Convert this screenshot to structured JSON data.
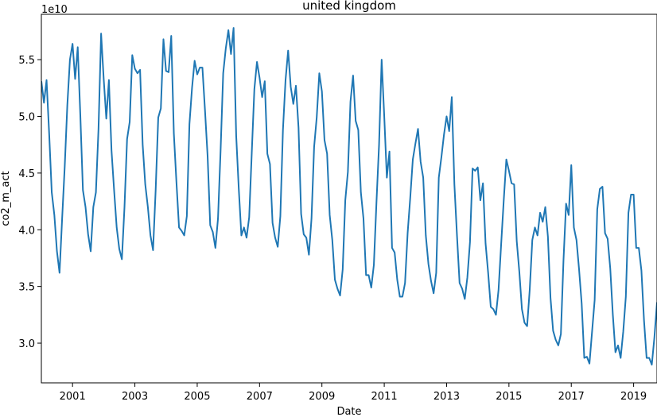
{
  "chart_data": {
    "type": "line",
    "title": "united kingdom",
    "xlabel": "Date",
    "ylabel": "co2_m_act",
    "y_offset_label": "1e10",
    "color": "#1f77b4",
    "grid": false,
    "xlim": [
      2000.0,
      2019.75
    ],
    "ylim": [
      2.65,
      5.9
    ],
    "x_ticks": [
      2001,
      2003,
      2005,
      2007,
      2009,
      2011,
      2013,
      2015,
      2017,
      2019
    ],
    "y_ticks": [
      3.0,
      3.5,
      4.0,
      4.5,
      5.0,
      5.5
    ],
    "y_tick_labels": [
      "3.0",
      "3.5",
      "4.0",
      "4.5",
      "5.0",
      "5.5"
    ],
    "series": [
      {
        "values": [
          5.31,
          5.12,
          5.32,
          4.85,
          4.33,
          4.13,
          3.81,
          3.62,
          4.1,
          4.56,
          5.1,
          5.5,
          5.64,
          5.33,
          5.61,
          5.01,
          4.35,
          4.2,
          3.96,
          3.81,
          4.2,
          4.33,
          4.89,
          5.73,
          5.33,
          4.98,
          5.32,
          4.7,
          4.35,
          4.02,
          3.83,
          3.74,
          4.2,
          4.8,
          4.95,
          5.54,
          5.42,
          5.38,
          5.41,
          4.75,
          4.4,
          4.2,
          3.95,
          3.82,
          4.35,
          4.99,
          5.07,
          5.68,
          5.4,
          5.39,
          5.71,
          4.85,
          4.42,
          4.02,
          3.99,
          3.95,
          4.12,
          4.93,
          5.25,
          5.49,
          5.37,
          5.43,
          5.43,
          5.05,
          4.65,
          4.04,
          3.98,
          3.84,
          4.1,
          4.7,
          5.38,
          5.6,
          5.76,
          5.55,
          5.78,
          4.83,
          4.36,
          3.95,
          4.02,
          3.93,
          4.11,
          4.68,
          5.24,
          5.48,
          5.34,
          5.17,
          5.31,
          4.67,
          4.58,
          4.06,
          3.93,
          3.85,
          4.12,
          4.88,
          5.32,
          5.58,
          5.26,
          5.11,
          5.27,
          4.9,
          4.14,
          3.96,
          3.93,
          3.78,
          4.1,
          4.73,
          4.99,
          5.38,
          5.22,
          4.79,
          4.67,
          4.13,
          3.91,
          3.56,
          3.48,
          3.42,
          3.65,
          4.26,
          4.51,
          5.13,
          5.36,
          4.96,
          4.88,
          4.33,
          4.1,
          3.6,
          3.6,
          3.49,
          3.69,
          4.24,
          4.75,
          5.5,
          5.0,
          4.46,
          4.69,
          3.84,
          3.8,
          3.56,
          3.41,
          3.41,
          3.53,
          3.97,
          4.28,
          4.62,
          4.76,
          4.89,
          4.6,
          4.46,
          3.95,
          3.7,
          3.55,
          3.44,
          3.62,
          4.46,
          4.64,
          4.84,
          5.0,
          4.87,
          5.17,
          4.4,
          3.95,
          3.53,
          3.48,
          3.39,
          3.58,
          3.89,
          4.54,
          4.52,
          4.55,
          4.26,
          4.41,
          3.88,
          3.62,
          3.32,
          3.3,
          3.25,
          3.47,
          3.87,
          4.26,
          4.62,
          4.52,
          4.41,
          4.4,
          3.9,
          3.63,
          3.3,
          3.18,
          3.15,
          3.47,
          3.91,
          4.02,
          3.95,
          4.15,
          4.07,
          4.2,
          3.94,
          3.4,
          3.11,
          3.03,
          2.98,
          3.08,
          3.73,
          4.23,
          4.13,
          4.57,
          4.02,
          3.91,
          3.65,
          3.35,
          2.87,
          2.88,
          2.82,
          3.1,
          3.38,
          4.18,
          4.36,
          4.38,
          3.97,
          3.92,
          3.66,
          3.25,
          2.92,
          2.98,
          2.87,
          3.1,
          3.41,
          4.15,
          4.31,
          4.31,
          3.84,
          3.84,
          3.64,
          3.2,
          2.87,
          2.87,
          2.81,
          3.05,
          3.36
        ]
      }
    ]
  }
}
